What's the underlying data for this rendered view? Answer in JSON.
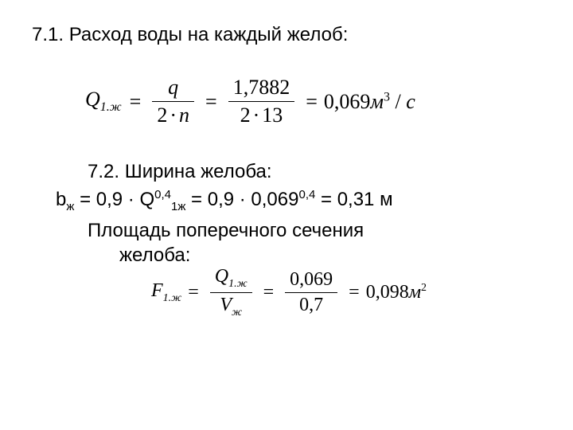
{
  "section1": {
    "title": "7.1. Расход воды на каждый желоб:",
    "eq": {
      "lhs_var": "Q",
      "lhs_sub": "1.ж",
      "eq1": "=",
      "f1_num": "q",
      "f1_den_l": "2",
      "f1_den_dot": "·",
      "f1_den_r": "n",
      "eq2": "=",
      "f2_num": "1,7882",
      "f2_den_l": "2",
      "f2_den_dot": "·",
      "f2_den_r": "13",
      "eq3": "=",
      "rhs_val": "0,069",
      "rhs_unit_m": "м",
      "rhs_sup": "3",
      "rhs_slash": " / ",
      "rhs_c": "с"
    }
  },
  "section2": {
    "title": "7.2. Ширина желоба:",
    "bline": {
      "b": "b",
      "b_sub": "ж",
      "eq1": " = 0,9 · Q",
      "q_sup": "0,4",
      "q_sub": "1ж",
      "eq2": " = 0,9 · 0,069",
      "v_sup": "0,4",
      "eq3": " = 0,31 м"
    },
    "area_l1": "Площадь поперечного сечения",
    "area_l2": "желоба:",
    "eq2": {
      "lhs_var": "F",
      "lhs_sub": "1.ж",
      "eq1": "=",
      "f1_num_var": "Q",
      "f1_num_sub": "1.ж",
      "f1_den_var": "V",
      "f1_den_sub": "ж",
      "eq2": "=",
      "f2_num": "0,069",
      "f2_den": "0,7",
      "eq3": "=",
      "rhs_val": "0,098",
      "rhs_unit_m": "м",
      "rhs_sup": "2"
    }
  }
}
